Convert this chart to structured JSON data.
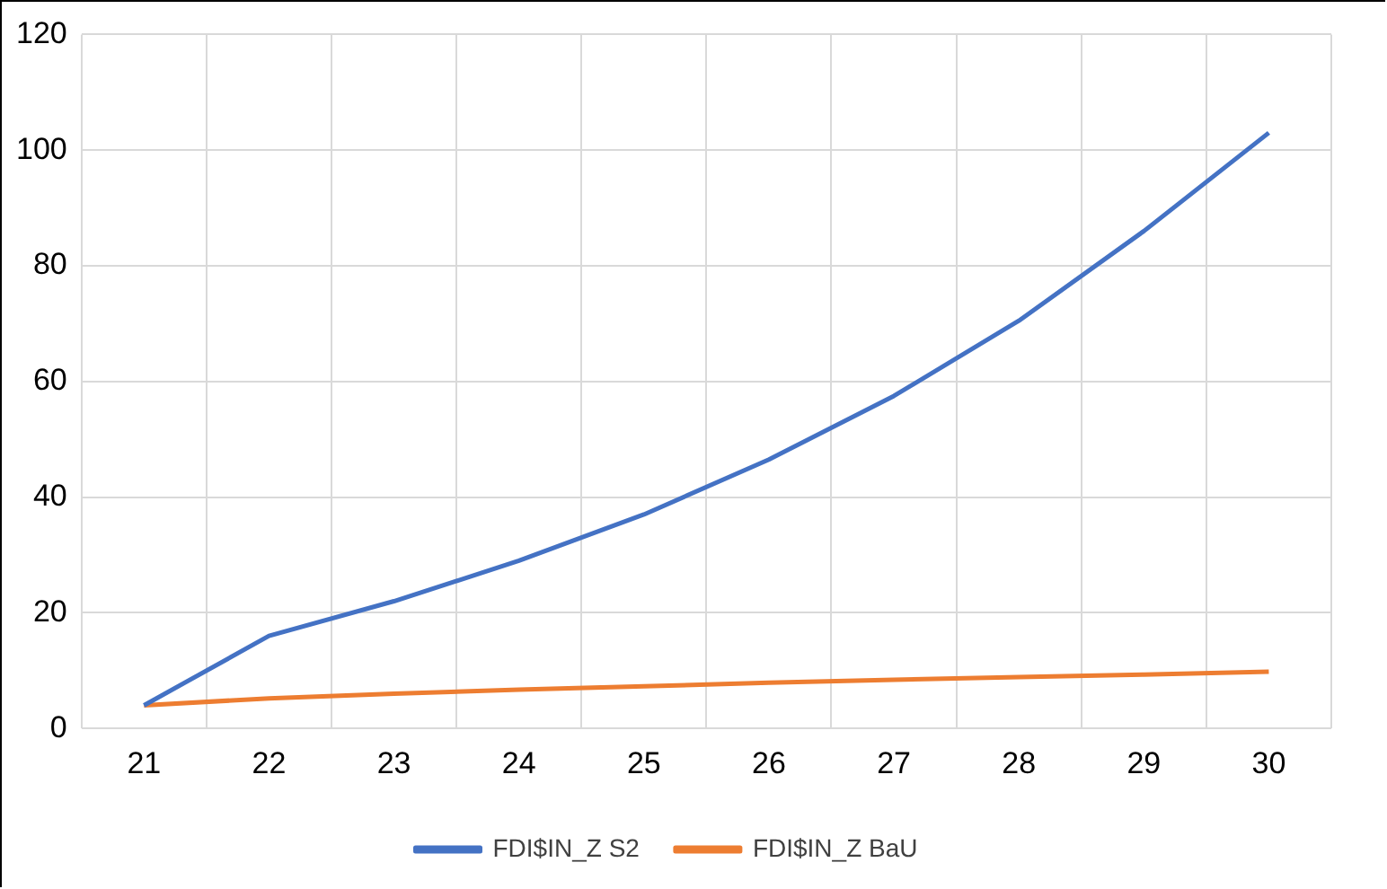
{
  "chart_data": {
    "type": "line",
    "categories": [
      "21",
      "22",
      "23",
      "24",
      "25",
      "26",
      "27",
      "28",
      "29",
      "30"
    ],
    "series": [
      {
        "name": "FDI$IN_Z S2",
        "color": "#4472c4",
        "values": [
          4,
          16,
          22,
          29,
          37,
          46.5,
          57.5,
          70.5,
          86,
          103
        ]
      },
      {
        "name": "FDI$IN_Z BaU",
        "color": "#ed7d31",
        "values": [
          4,
          5.2,
          6,
          6.7,
          7.3,
          7.9,
          8.4,
          8.9,
          9.3,
          9.8
        ]
      }
    ],
    "ylim": [
      0,
      120
    ],
    "yticks": [
      0,
      20,
      40,
      60,
      80,
      100,
      120
    ],
    "grid": true,
    "legend": "bottom",
    "marker": "none",
    "line_style": "solid"
  }
}
